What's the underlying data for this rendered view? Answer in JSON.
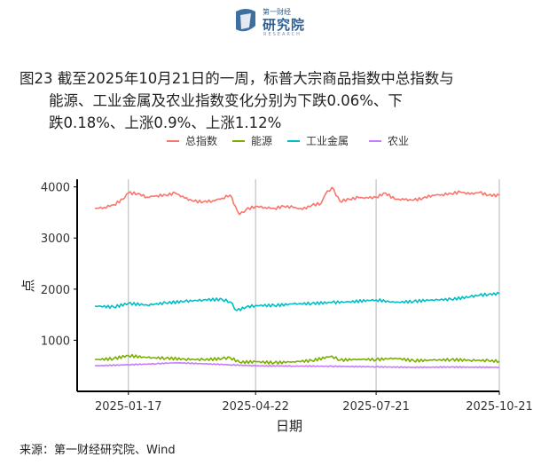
{
  "logo": {
    "top_text": "第一财经",
    "main_text": "研究院",
    "sub_text": "RESEARCH"
  },
  "title": {
    "line1": "图23  截至2025年10月21日的一周，标普大宗商品指数中总指数与",
    "line2": "能源、工业金属及农业指数变化分别为下跌0.06%、下",
    "line3": "跌0.18%、上涨0.9%、上涨1.12%"
  },
  "source": "来源：第一财经研究院、Wind",
  "chart_data": {
    "type": "line",
    "xlabel": "日期",
    "ylabel": "点",
    "x_ticks": [
      "2025-01-17",
      "2025-04-22",
      "2025-07-21",
      "2025-10-21"
    ],
    "x_range": [
      "2024-12-23",
      "2025-10-21"
    ],
    "ylim": [
      0,
      4150
    ],
    "y_ticks": [
      1000,
      2000,
      3000,
      4000
    ],
    "grid": "vertical at x ticks",
    "legend_position": "top",
    "series": [
      {
        "name": "总指数",
        "color": "#F8766D",
        "points": [
          [
            "2024-12-23",
            3580
          ],
          [
            "2024-12-30",
            3600
          ],
          [
            "2025-01-06",
            3650
          ],
          [
            "2025-01-13",
            3760
          ],
          [
            "2025-01-17",
            3880
          ],
          [
            "2025-01-24",
            3870
          ],
          [
            "2025-01-31",
            3800
          ],
          [
            "2025-02-07",
            3830
          ],
          [
            "2025-02-14",
            3840
          ],
          [
            "2025-02-21",
            3880
          ],
          [
            "2025-02-28",
            3780
          ],
          [
            "2025-03-07",
            3720
          ],
          [
            "2025-03-14",
            3710
          ],
          [
            "2025-03-21",
            3730
          ],
          [
            "2025-03-28",
            3780
          ],
          [
            "2025-04-03",
            3840
          ],
          [
            "2025-04-07",
            3620
          ],
          [
            "2025-04-10",
            3460
          ],
          [
            "2025-04-15",
            3560
          ],
          [
            "2025-04-22",
            3620
          ],
          [
            "2025-04-29",
            3600
          ],
          [
            "2025-05-06",
            3580
          ],
          [
            "2025-05-13",
            3620
          ],
          [
            "2025-05-20",
            3600
          ],
          [
            "2025-05-27",
            3560
          ],
          [
            "2025-06-03",
            3640
          ],
          [
            "2025-06-10",
            3680
          ],
          [
            "2025-06-13",
            3850
          ],
          [
            "2025-06-18",
            3990
          ],
          [
            "2025-06-24",
            3720
          ],
          [
            "2025-07-01",
            3760
          ],
          [
            "2025-07-08",
            3790
          ],
          [
            "2025-07-15",
            3780
          ],
          [
            "2025-07-21",
            3800
          ],
          [
            "2025-07-28",
            3880
          ],
          [
            "2025-08-04",
            3760
          ],
          [
            "2025-08-11",
            3750
          ],
          [
            "2025-08-18",
            3740
          ],
          [
            "2025-08-25",
            3780
          ],
          [
            "2025-09-01",
            3840
          ],
          [
            "2025-09-08",
            3850
          ],
          [
            "2025-09-15",
            3870
          ],
          [
            "2025-09-22",
            3900
          ],
          [
            "2025-09-29",
            3860
          ],
          [
            "2025-10-06",
            3890
          ],
          [
            "2025-10-13",
            3840
          ],
          [
            "2025-10-21",
            3830
          ]
        ]
      },
      {
        "name": "能源",
        "color": "#7CAE00",
        "points": [
          [
            "2024-12-23",
            620
          ],
          [
            "2025-01-06",
            640
          ],
          [
            "2025-01-17",
            700
          ],
          [
            "2025-01-31",
            660
          ],
          [
            "2025-02-14",
            650
          ],
          [
            "2025-02-28",
            630
          ],
          [
            "2025-03-14",
            620
          ],
          [
            "2025-03-28",
            640
          ],
          [
            "2025-04-03",
            660
          ],
          [
            "2025-04-10",
            570
          ],
          [
            "2025-04-22",
            580
          ],
          [
            "2025-05-06",
            560
          ],
          [
            "2025-05-20",
            580
          ],
          [
            "2025-06-03",
            600
          ],
          [
            "2025-06-18",
            690
          ],
          [
            "2025-06-24",
            610
          ],
          [
            "2025-07-08",
            630
          ],
          [
            "2025-07-21",
            620
          ],
          [
            "2025-08-04",
            650
          ],
          [
            "2025-08-18",
            600
          ],
          [
            "2025-09-01",
            610
          ],
          [
            "2025-09-15",
            620
          ],
          [
            "2025-09-29",
            610
          ],
          [
            "2025-10-13",
            600
          ],
          [
            "2025-10-21",
            590
          ]
        ]
      },
      {
        "name": "工业金属",
        "color": "#00BFC4",
        "points": [
          [
            "2024-12-23",
            1670
          ],
          [
            "2025-01-06",
            1650
          ],
          [
            "2025-01-17",
            1720
          ],
          [
            "2025-01-31",
            1690
          ],
          [
            "2025-02-14",
            1730
          ],
          [
            "2025-02-28",
            1760
          ],
          [
            "2025-03-14",
            1790
          ],
          [
            "2025-03-28",
            1800
          ],
          [
            "2025-04-03",
            1750
          ],
          [
            "2025-04-08",
            1580
          ],
          [
            "2025-04-15",
            1650
          ],
          [
            "2025-04-22",
            1680
          ],
          [
            "2025-05-06",
            1680
          ],
          [
            "2025-05-20",
            1710
          ],
          [
            "2025-06-03",
            1720
          ],
          [
            "2025-06-18",
            1740
          ],
          [
            "2025-07-01",
            1750
          ],
          [
            "2025-07-21",
            1790
          ],
          [
            "2025-08-04",
            1740
          ],
          [
            "2025-08-18",
            1760
          ],
          [
            "2025-09-01",
            1790
          ],
          [
            "2025-09-15",
            1800
          ],
          [
            "2025-09-29",
            1850
          ],
          [
            "2025-10-06",
            1880
          ],
          [
            "2025-10-13",
            1900
          ],
          [
            "2025-10-21",
            1910
          ]
        ]
      },
      {
        "name": "农业",
        "color": "#C77CFF",
        "points": [
          [
            "2024-12-23",
            500
          ],
          [
            "2025-01-17",
            520
          ],
          [
            "2025-02-07",
            540
          ],
          [
            "2025-02-21",
            560
          ],
          [
            "2025-03-14",
            540
          ],
          [
            "2025-04-03",
            520
          ],
          [
            "2025-04-22",
            500
          ],
          [
            "2025-05-20",
            495
          ],
          [
            "2025-06-18",
            490
          ],
          [
            "2025-07-21",
            480
          ],
          [
            "2025-08-18",
            470
          ],
          [
            "2025-09-15",
            475
          ],
          [
            "2025-10-21",
            470
          ]
        ]
      }
    ]
  }
}
